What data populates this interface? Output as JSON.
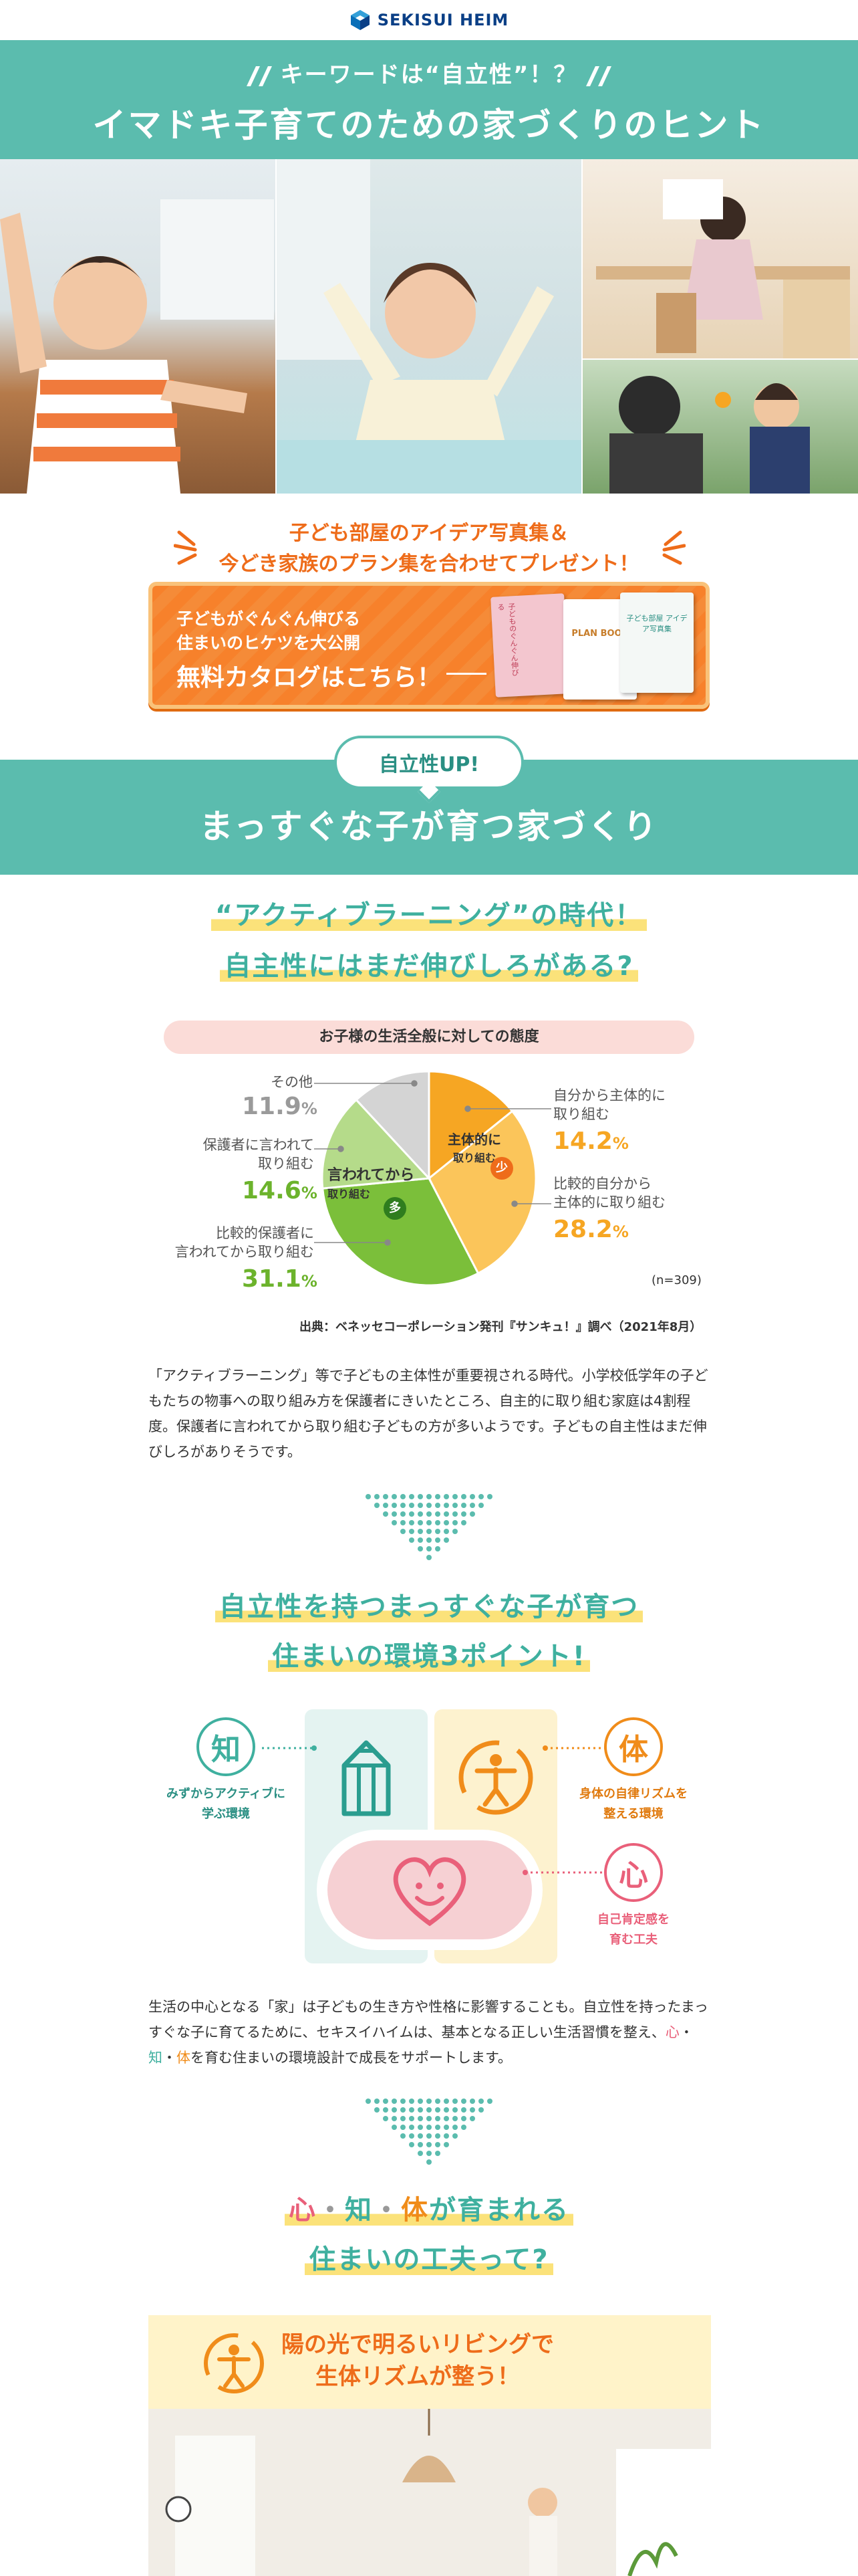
{
  "header": {
    "logo_text": "SEKISUI HEIM"
  },
  "hero": {
    "keyword": "キーワードは“自立性”！？",
    "title": "イマドキ子育てのための家づくりのヒント"
  },
  "catalog": {
    "present_line1": "子ども部屋のアイデア写真集＆",
    "present_line2": "今どき家族のプラン集を合わせてプレゼント！",
    "banner_sub1": "子どもがぐんぐん伸びる",
    "banner_sub2": "住まいのヒケツを大公開",
    "banner_main": "無料カタログはこちら！",
    "book1": "子どものぐんぐん伸びる",
    "book2": "PLAN BOOK",
    "book3": "子ども部屋 アイデア写真集"
  },
  "section2": {
    "badge": "自立性UP!",
    "title": "まっすぐな子が育つ家づくり"
  },
  "survey": {
    "heading1": "“アクティブラーニング”の時代！",
    "heading2": "自主性にはまだ伸びしろがある?",
    "caption": "お子様の生活全般に対しての態度",
    "center_label_a": "主体的に",
    "center_label_a2": "取り組む",
    "badge_few": "少",
    "center_label_b": "言われてから",
    "center_label_b2": "取り組む",
    "badge_many": "多",
    "n": "(n=309)",
    "source": "出典：ベネッセコーポレーション発刊『サンキュ！』調べ（2021年8月）",
    "paragraph": "「アクティブラーニング」等で子どもの主体性が重要視される時代。小学校低学年の子どもたちの物事への取り組み方を保護者にきいたところ、自主的に取り組む家庭は4割程度。保護者に言われてから取り組む子どもの方が多いようです。子どもの自主性はまだ伸びしろがありそうです。"
  },
  "chart_data": {
    "type": "pie",
    "title": "お子様の生活全般に対しての態度",
    "slices": [
      {
        "label": "自分から主体的に取り組む",
        "value": 14.2,
        "color": "#f6a623"
      },
      {
        "label": "比較的自分から主体的に取り組む",
        "value": 28.2,
        "color": "#fbc55a"
      },
      {
        "label": "比較的保護者に言われてから取り組む",
        "value": 31.1,
        "color": "#7bbf3a"
      },
      {
        "label": "保護者に言われて取り組む",
        "value": 14.6,
        "color": "#b5db8a"
      },
      {
        "label": "その他",
        "value": 11.9,
        "color": "#d4d4d4"
      }
    ],
    "n": 309
  },
  "pie_labels": {
    "s1a": "自分から主体的に",
    "s1b": "取り組む",
    "p1": "14.2",
    "s2a": "比較的自分から",
    "s2b": "主体的に取り組む",
    "p2": "28.2",
    "s3a": "比較的保護者に",
    "s3b": "言われてから取り組む",
    "p3": "31.1",
    "s4a": "保護者に言われて",
    "s4b": "取り組む",
    "p4": "14.6",
    "s5a": "その他",
    "p5": "11.9",
    "unit": "%"
  },
  "points": {
    "heading1": "自立性を持つまっすぐな子が育つ",
    "heading2": "住まいの環境3ポイント!",
    "chi": "知",
    "chi_label1": "みずからアクティブに",
    "chi_label2": "学ぶ環境",
    "tai": "体",
    "tai_label1": "身体の自律リズムを",
    "tai_label2": "整える環境",
    "shin": "心",
    "shin_label1": "自己肯定感を",
    "shin_label2": "育む工夫",
    "para_a": "生活の中心となる「家」は子どもの生き方や性格に影響することも。自立性を持ったまっすぐな子に育てるために、セキスイハイムは、基本となる正しい生活習慣を整え、",
    "para_shin": "心",
    "para_dot1": "・",
    "para_chi": "知",
    "para_dot2": "・",
    "para_tai": "体",
    "para_b": "を育む住まいの環境設計で成長をサポートします。"
  },
  "ideas": {
    "h_shin": "心",
    "h_dot1": "・",
    "h_chi": "知",
    "h_dot2": "・",
    "h_tai": "体",
    "h_rest": "が育まれる",
    "heading2": "住まいの工夫って?",
    "living_title1": "陽の光で明るいリビングで",
    "living_title2": "生体リズムが整う！"
  },
  "colors": {
    "teal": "#5bbcae",
    "orange": "#ee6c1a",
    "pink": "#e9607a",
    "yellow": "#fbe27a"
  }
}
